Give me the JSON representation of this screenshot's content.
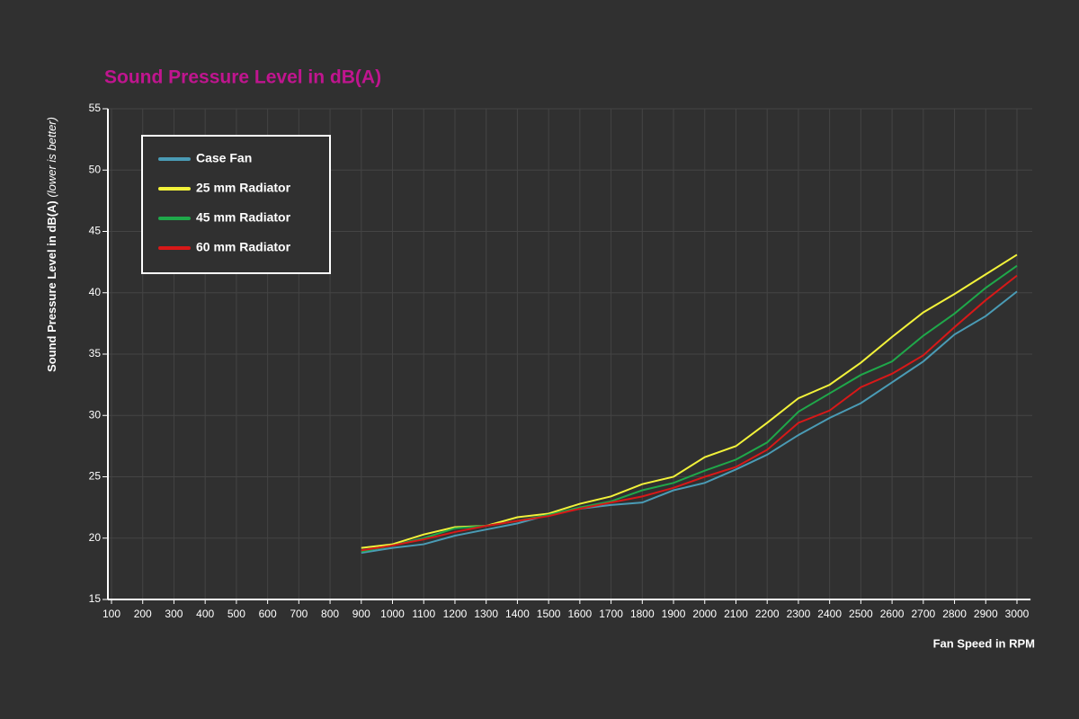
{
  "chart_data": {
    "type": "line",
    "title": "Sound Pressure Level in dB(A)",
    "y_label": "Sound Pressure Level in dB(A)",
    "y_label_note": "(lower is better)",
    "x_label": "Fan Speed in RPM",
    "x": [
      900,
      1000,
      1100,
      1200,
      1300,
      1400,
      1500,
      1600,
      1700,
      1800,
      1900,
      2000,
      2100,
      2200,
      2300,
      2400,
      2500,
      2600,
      2700,
      2800,
      2900,
      3000
    ],
    "series": [
      {
        "name": "Case Fan",
        "color": "#4a9bb5",
        "values": [
          18.8,
          19.2,
          19.5,
          20.2,
          20.7,
          21.2,
          21.9,
          22.4,
          22.7,
          22.9,
          23.9,
          24.5,
          25.6,
          26.8,
          28.4,
          29.8,
          31.0,
          32.7,
          34.4,
          36.6,
          38.1,
          40.1
        ]
      },
      {
        "name": "25 mm Radiator",
        "color": "#f2f23a",
        "values": [
          19.2,
          19.5,
          20.3,
          20.9,
          21.0,
          21.7,
          22.0,
          22.8,
          23.4,
          24.4,
          25.0,
          26.6,
          27.5,
          29.4,
          31.4,
          32.5,
          34.3,
          36.4,
          38.4,
          39.9,
          41.5,
          43.1
        ]
      },
      {
        "name": "45 mm Radiator",
        "color": "#1fa84a",
        "values": [
          18.9,
          19.4,
          20.0,
          20.8,
          21.0,
          21.4,
          21.9,
          22.5,
          23.0,
          23.9,
          24.5,
          25.5,
          26.4,
          27.8,
          30.3,
          31.8,
          33.3,
          34.4,
          36.5,
          38.3,
          40.4,
          42.2
        ]
      },
      {
        "name": "60 mm Radiator",
        "color": "#d81818",
        "values": [
          19.0,
          19.4,
          19.9,
          20.5,
          21.0,
          21.4,
          21.8,
          22.4,
          22.9,
          23.4,
          24.1,
          25.0,
          25.8,
          27.2,
          29.4,
          30.4,
          32.3,
          33.4,
          34.9,
          37.2,
          39.4,
          41.4
        ]
      }
    ],
    "xlim": [
      100,
      3000
    ],
    "xticks": [
      100,
      200,
      300,
      400,
      500,
      600,
      700,
      800,
      900,
      1000,
      1100,
      1200,
      1300,
      1400,
      1500,
      1600,
      1700,
      1800,
      1900,
      2000,
      2100,
      2200,
      2300,
      2400,
      2500,
      2600,
      2700,
      2800,
      2900,
      3000
    ],
    "ylim": [
      15,
      55
    ],
    "yticks": [
      15,
      20,
      25,
      30,
      35,
      40,
      45,
      50,
      55
    ],
    "grid": true,
    "legend": "top-left"
  }
}
